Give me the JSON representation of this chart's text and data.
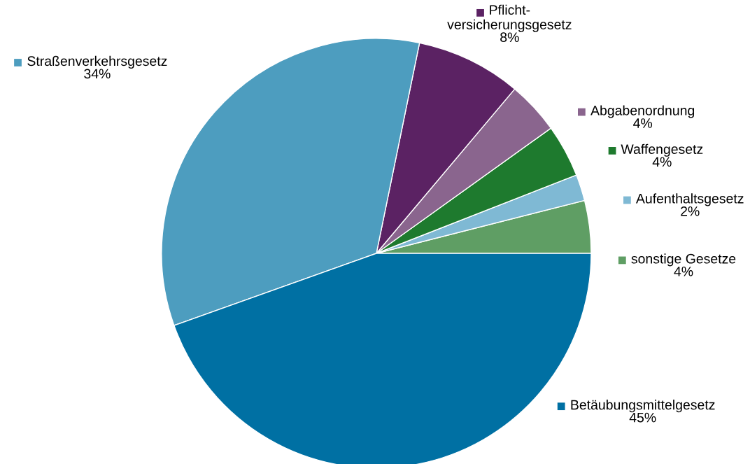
{
  "chart_data": {
    "type": "pie",
    "categories": [
      "sonstige Gesetze",
      "Aufenthaltsgesetz",
      "Waffengesetz",
      "Abgabenordnung",
      "Pflicht-\nversicherungsgesetz",
      "Straßenverkehrsgesetz",
      "Betäubungsmittelgesetz"
    ],
    "values": [
      4,
      2,
      4,
      4,
      8,
      34,
      45
    ],
    "value_labels": [
      "4%",
      "2%",
      "4%",
      "4%",
      "8%",
      "34%",
      "45%"
    ],
    "legend": "right",
    "colors": [
      "#5f9e64",
      "#7fb9d4",
      "#1e7a2e",
      "#8a658e",
      "#5b2263",
      "#4d9dbf",
      "#0070a3"
    ]
  }
}
